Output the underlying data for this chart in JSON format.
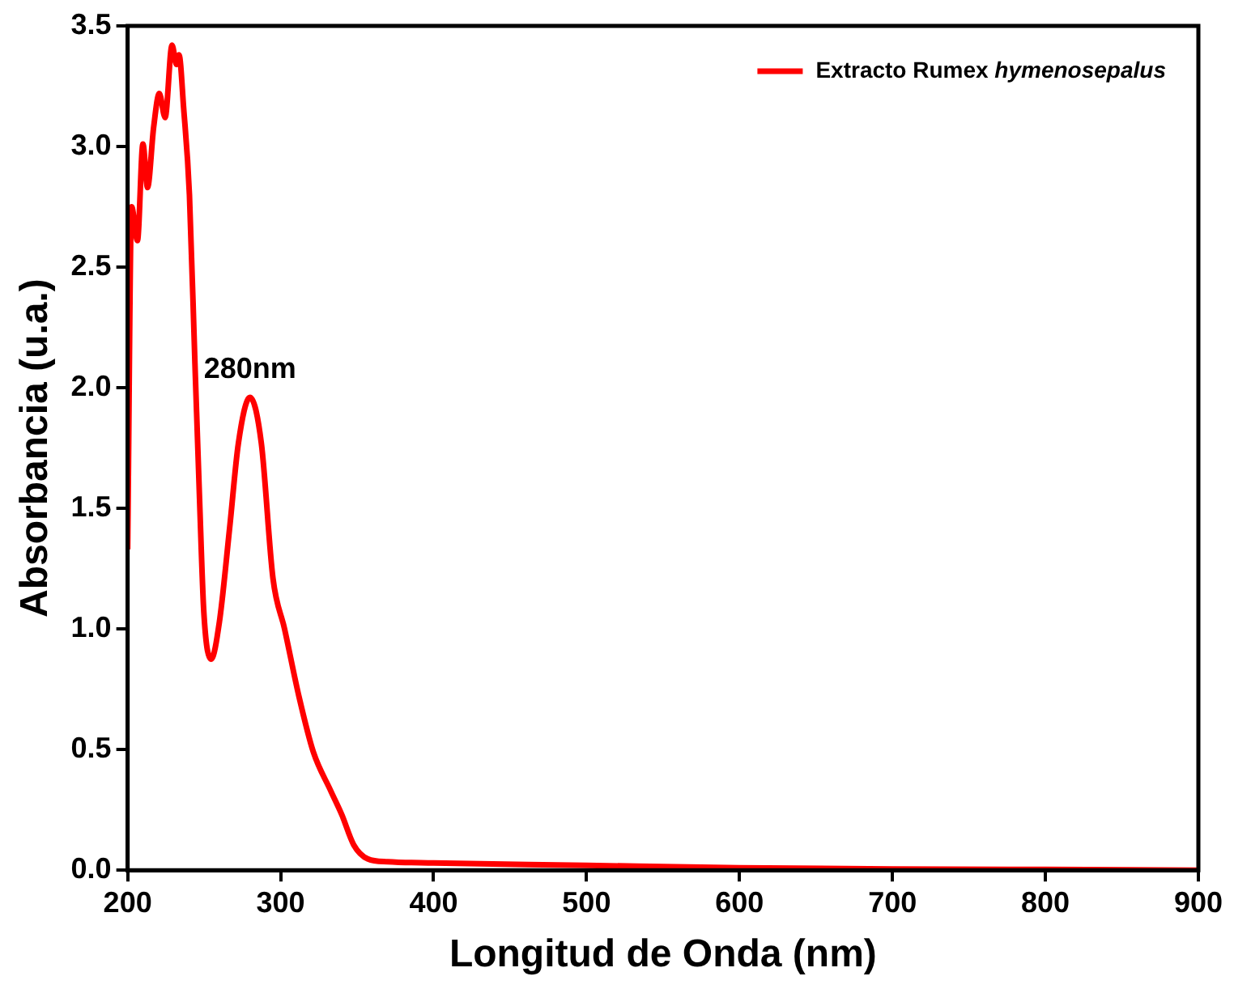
{
  "chart_data": {
    "type": "line",
    "xlabel": "Longitud de Onda (nm)",
    "ylabel": "Absorbancia (u.a.)",
    "xlim": [
      200,
      900
    ],
    "ylim": [
      0,
      3.5
    ],
    "xticks": [
      200,
      300,
      400,
      500,
      600,
      700,
      800,
      900
    ],
    "yticks": [
      {
        "value": 0,
        "label": "0.0"
      },
      {
        "value": 0.5,
        "label": "0.5"
      },
      {
        "value": 1,
        "label": "1.0"
      },
      {
        "value": 1.5,
        "label": "1.5"
      },
      {
        "value": 2,
        "label": "2.0"
      },
      {
        "value": 2.5,
        "label": "2.5"
      },
      {
        "value": 3,
        "label": "3.0"
      },
      {
        "value": 3.5,
        "label": "3.5"
      }
    ],
    "grid": false,
    "legend": "top right",
    "marker": "none",
    "line_style": "solid",
    "annotations": [
      {
        "text": "280nm",
        "x": 280,
        "y": 1.96
      }
    ],
    "series": [
      {
        "name": "Extracto Rumex hymenosepalus",
        "color": "#ff0000",
        "x": [
          200,
          202.6,
          206.4,
          210,
          213,
          217,
          220.7,
          224.5,
          229,
          232,
          233.6,
          236.6,
          240.4,
          244,
          247,
          249.8,
          254.6,
          260,
          266.7,
          272.4,
          280,
          287.4,
          295,
          302.6,
          312,
          321.4,
          332.7,
          340,
          347.8,
          357,
          370,
          400,
          500,
          600,
          700,
          800,
          900
        ],
        "values": [
          1.33,
          2.75,
          2.61,
          3.01,
          2.83,
          3.08,
          3.22,
          3.12,
          3.42,
          3.34,
          3.38,
          3.16,
          2.8,
          2.1,
          1.54,
          1.07,
          0.875,
          1.03,
          1.42,
          1.77,
          1.96,
          1.77,
          1.21,
          1.0,
          0.72,
          0.49,
          0.33,
          0.23,
          0.105,
          0.047,
          0.035,
          0.03,
          0.02,
          0.01,
          0.005,
          0.003,
          0.0
        ]
      }
    ]
  }
}
